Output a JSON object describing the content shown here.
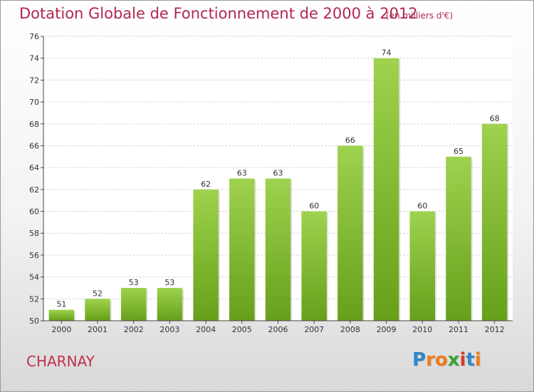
{
  "chart_data": {
    "type": "bar",
    "title": "Dotation Globale de Fonctionnement de 2000 à 2012",
    "subtitle": "(en milliers d'€)",
    "categories": [
      "2000",
      "2001",
      "2002",
      "2003",
      "2004",
      "2005",
      "2006",
      "2007",
      "2008",
      "2009",
      "2010",
      "2011",
      "2012"
    ],
    "values": [
      51,
      52,
      53,
      53,
      62,
      63,
      63,
      60,
      66,
      74,
      60,
      65,
      68
    ],
    "ylim": [
      50,
      76
    ],
    "yticks": [
      50,
      52,
      54,
      56,
      58,
      60,
      62,
      64,
      66,
      68,
      70,
      72,
      74,
      76
    ],
    "grid": true,
    "legend": "none",
    "bar_color_top": "#9fd24e",
    "bar_color_bottom": "#66a01a"
  },
  "commune": "CHARNAY",
  "brand": {
    "letters": [
      "P",
      "r",
      "o",
      "x",
      "i",
      "t",
      "i"
    ],
    "colors": [
      "#2f86c8",
      "#f07a1a",
      "#f07a1a",
      "#3aa13a",
      "#d83a2a",
      "#2f86c8",
      "#f07a1a"
    ]
  }
}
